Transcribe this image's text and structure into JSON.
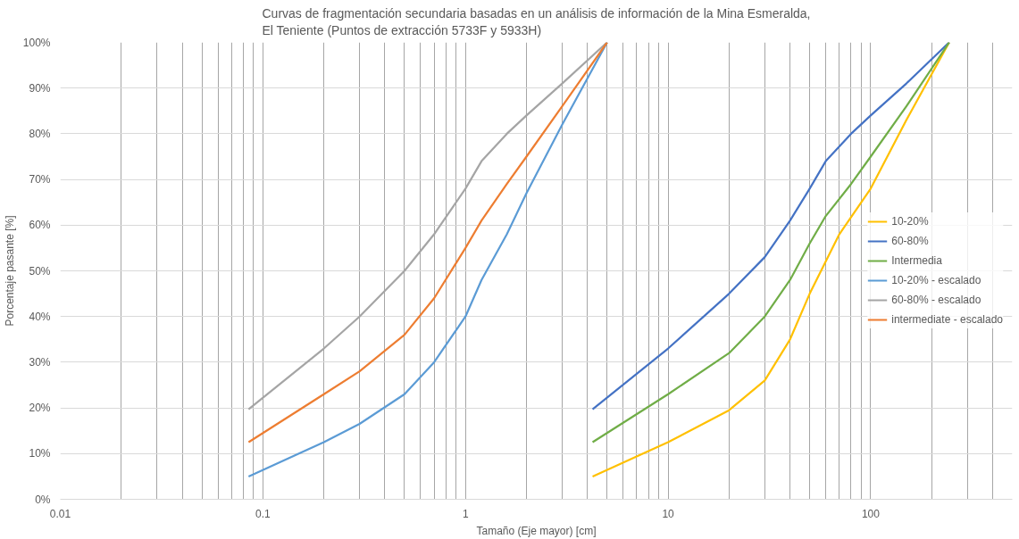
{
  "chart_data": {
    "type": "line",
    "title": "Curvas de fragmentación secundaria basadas en un análisis de información de la Mina Esmeralda,\nEl Teniente (Puntos de extracción 5733F y 5933H)",
    "xlabel": "Tamaño (Eje mayor) [cm]",
    "ylabel": "Porcentaje pasante [%]",
    "log": "x",
    "xlim": [
      0.01,
      500
    ],
    "xticks": [
      0.01,
      0.1,
      1,
      10,
      100
    ],
    "ylim": [
      0,
      100
    ],
    "yticks": [
      {
        "value": 0,
        "label": "0%"
      },
      {
        "value": 10,
        "label": "10%"
      },
      {
        "value": 20,
        "label": "20%"
      },
      {
        "value": 30,
        "label": "30%"
      },
      {
        "value": 40,
        "label": "40%"
      },
      {
        "value": 50,
        "label": "50%"
      },
      {
        "value": 60,
        "label": "60%"
      },
      {
        "value": 70,
        "label": "70%"
      },
      {
        "value": 80,
        "label": "80%"
      },
      {
        "value": 90,
        "label": "90%"
      },
      {
        "value": 100,
        "label": "100%"
      }
    ],
    "grid": true,
    "legend": "right",
    "marker": "none",
    "line_style": "solid",
    "series": [
      {
        "name": "10-20%",
        "color": "#ffc000",
        "x": [
          4.24,
          10,
          20,
          30,
          40,
          50,
          70,
          100,
          150,
          244
        ],
        "values": [
          5,
          12.5,
          19.5,
          26,
          35,
          45,
          58,
          68,
          83,
          100
        ]
      },
      {
        "name": "60-80%",
        "color": "#4472c4",
        "x": [
          4.24,
          10,
          20,
          30,
          40,
          50,
          60,
          80,
          100,
          150,
          244
        ],
        "values": [
          19.7,
          33,
          45,
          53,
          61,
          68,
          74,
          80,
          84,
          91,
          100
        ]
      },
      {
        "name": "Intermedia",
        "color": "#70ad47",
        "x": [
          4.24,
          10,
          20,
          30,
          40,
          50,
          60,
          80,
          100,
          150,
          244
        ],
        "values": [
          12.5,
          23,
          32,
          40,
          48,
          56,
          62,
          69,
          75,
          86,
          100
        ]
      },
      {
        "name": "10-20% - escalado",
        "color": "#5b9bd5",
        "x": [
          0.085,
          0.2,
          0.3,
          0.5,
          0.7,
          1,
          1.2,
          1.6,
          2,
          3,
          5
        ],
        "values": [
          5,
          12.5,
          16.5,
          23,
          30,
          40,
          48,
          58,
          67,
          82,
          100
        ]
      },
      {
        "name": "60-80% - escalado",
        "color": "#a5a5a5",
        "x": [
          0.085,
          0.2,
          0.3,
          0.5,
          0.7,
          1,
          1.2,
          1.6,
          2,
          3,
          5
        ],
        "values": [
          19.7,
          33,
          40,
          50,
          58,
          68,
          74,
          80,
          84,
          91,
          100
        ]
      },
      {
        "name": "intermediate - escalado",
        "color": "#ed7d31",
        "x": [
          0.085,
          0.2,
          0.3,
          0.5,
          0.7,
          1,
          1.2,
          1.6,
          2,
          3,
          5
        ],
        "values": [
          12.5,
          23,
          28,
          36,
          44,
          55,
          61,
          69,
          75,
          86,
          100
        ]
      }
    ]
  }
}
